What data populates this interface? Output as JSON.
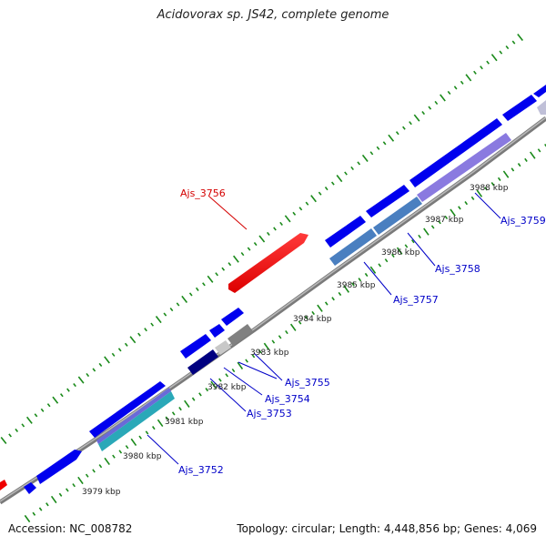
{
  "title": "Acidovorax sp. JS42, complete genome",
  "accession": "Accession: NC_008782",
  "topology": "Topology: circular; Length: 4,448,856 bp; Genes: 4,069",
  "scale_labels": [
    "3979 kbp",
    "3980 kbp",
    "3981 kbp",
    "3982 kbp",
    "3983 kbp",
    "3984 kbp",
    "3985 kbp",
    "3986 kbp",
    "3987 kbp",
    "3988 kbp"
  ],
  "gene_labels": [
    {
      "name": "Ajs_3752",
      "color": "#0000c8"
    },
    {
      "name": "Ajs_3753",
      "color": "#0000c8"
    },
    {
      "name": "Ajs_3754",
      "color": "#0000c8"
    },
    {
      "name": "Ajs_3755",
      "color": "#0000c8"
    },
    {
      "name": "Ajs_3756",
      "color": "#d40000"
    },
    {
      "name": "Ajs_3757",
      "color": "#0000c8"
    },
    {
      "name": "Ajs_3758",
      "color": "#0000c8"
    },
    {
      "name": "Ajs_3759",
      "color": "#0000c8"
    }
  ],
  "colors": {
    "backbone": "#8c8c8c",
    "gene_forward": "#0000ee",
    "gene_highlight": "#ee0000",
    "cog_tick": "#1a8a1a"
  }
}
